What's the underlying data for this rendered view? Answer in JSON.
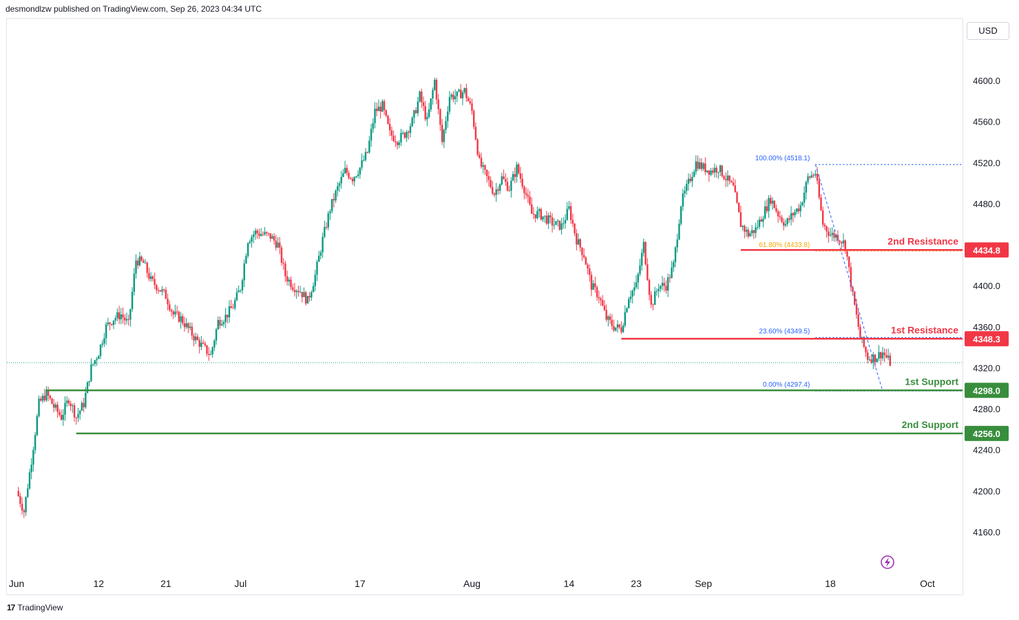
{
  "header": {
    "publisher": "desmondlzw published on TradingView.com, Sep 26, 2023 04:34 UTC"
  },
  "currency": "USD",
  "footer": {
    "brand": "TradingView",
    "logo_mark": "17"
  },
  "colors": {
    "up": "#089981",
    "down": "#f23645",
    "resistance": "#f23645",
    "support": "#388e3c",
    "fib": "#2962ff",
    "fib_mid": "#f7a600",
    "last_price_line": "#089981",
    "brand": "#131722"
  },
  "chart_data": {
    "type": "candlestick",
    "ylim": [
      4135,
      4640
    ],
    "y_ticks": [
      4160,
      4200,
      4240,
      4280,
      4320,
      4360,
      4400,
      4480,
      4520,
      4560,
      4600
    ],
    "y_tick_labels": [
      "4160.0",
      "4200.0",
      "4240.0",
      "4280.0",
      "4320.0",
      "4360.0",
      "4400.0",
      "4480.0",
      "4520.0",
      "4560.0",
      "4600.0"
    ],
    "x_labels": [
      "Jun",
      "12",
      "21",
      "Jul",
      "17",
      "Aug",
      "14",
      "23",
      "Sep",
      "18",
      "Oct"
    ],
    "x_label_dates": [
      "2023-06-01",
      "2023-06-12",
      "2023-06-21",
      "2023-07-01",
      "2023-07-17",
      "2023-08-01",
      "2023-08-14",
      "2023-08-23",
      "2023-09-01",
      "2023-09-18",
      "2023-10-01"
    ],
    "x_range": [
      "2023-06-01",
      "2023-10-01"
    ],
    "path": [
      [
        "2023-06-01",
        4200
      ],
      [
        "2023-06-02",
        4180
      ],
      [
        "2023-06-03",
        4230
      ],
      [
        "2023-06-04",
        4285
      ],
      [
        "2023-06-05",
        4295
      ],
      [
        "2023-06-06",
        4282
      ],
      [
        "2023-06-07",
        4272
      ],
      [
        "2023-06-08",
        4290
      ],
      [
        "2023-06-09",
        4272
      ],
      [
        "2023-06-10",
        4285
      ],
      [
        "2023-06-11",
        4320
      ],
      [
        "2023-06-12",
        4335
      ],
      [
        "2023-06-13",
        4360
      ],
      [
        "2023-06-14",
        4368
      ],
      [
        "2023-06-15",
        4372
      ],
      [
        "2023-06-16",
        4362
      ],
      [
        "2023-06-17",
        4425
      ],
      [
        "2023-06-18",
        4422
      ],
      [
        "2023-06-19",
        4405
      ],
      [
        "2023-06-20",
        4398
      ],
      [
        "2023-06-21",
        4390
      ],
      [
        "2023-06-22",
        4372
      ],
      [
        "2023-06-23",
        4368
      ],
      [
        "2023-06-24",
        4358
      ],
      [
        "2023-06-25",
        4348
      ],
      [
        "2023-06-26",
        4340
      ],
      [
        "2023-06-27",
        4332
      ],
      [
        "2023-06-28",
        4365
      ],
      [
        "2023-06-29",
        4370
      ],
      [
        "2023-06-30",
        4380
      ],
      [
        "2023-07-01",
        4398
      ],
      [
        "2023-07-02",
        4445
      ],
      [
        "2023-07-03",
        4452
      ],
      [
        "2023-07-04",
        4450
      ],
      [
        "2023-07-05",
        4448
      ],
      [
        "2023-07-06",
        4440
      ],
      [
        "2023-07-07",
        4410
      ],
      [
        "2023-07-08",
        4400
      ],
      [
        "2023-07-09",
        4395
      ],
      [
        "2023-07-10",
        4385
      ],
      [
        "2023-07-11",
        4410
      ],
      [
        "2023-07-12",
        4445
      ],
      [
        "2023-07-13",
        4475
      ],
      [
        "2023-07-14",
        4495
      ],
      [
        "2023-07-15",
        4512
      ],
      [
        "2023-07-16",
        4505
      ],
      [
        "2023-07-17",
        4515
      ],
      [
        "2023-07-18",
        4530
      ],
      [
        "2023-07-19",
        4570
      ],
      [
        "2023-07-20",
        4575
      ],
      [
        "2023-07-21",
        4548
      ],
      [
        "2023-07-22",
        4542
      ],
      [
        "2023-07-23",
        4548
      ],
      [
        "2023-07-24",
        4560
      ],
      [
        "2023-07-25",
        4585
      ],
      [
        "2023-07-26",
        4560
      ],
      [
        "2023-07-27",
        4600
      ],
      [
        "2023-07-28",
        4540
      ],
      [
        "2023-07-29",
        4585
      ],
      [
        "2023-07-30",
        4585
      ],
      [
        "2023-07-31",
        4590
      ],
      [
        "2023-08-01",
        4570
      ],
      [
        "2023-08-02",
        4520
      ],
      [
        "2023-08-03",
        4505
      ],
      [
        "2023-08-04",
        4490
      ],
      [
        "2023-08-05",
        4505
      ],
      [
        "2023-08-06",
        4495
      ],
      [
        "2023-08-07",
        4515
      ],
      [
        "2023-08-08",
        4495
      ],
      [
        "2023-08-09",
        4470
      ],
      [
        "2023-08-10",
        4470
      ],
      [
        "2023-08-11",
        4465
      ],
      [
        "2023-08-12",
        4460
      ],
      [
        "2023-08-13",
        4458
      ],
      [
        "2023-08-14",
        4475
      ],
      [
        "2023-08-15",
        4445
      ],
      [
        "2023-08-16",
        4430
      ],
      [
        "2023-08-17",
        4400
      ],
      [
        "2023-08-18",
        4390
      ],
      [
        "2023-08-19",
        4368
      ],
      [
        "2023-08-20",
        4360
      ],
      [
        "2023-08-21",
        4358
      ],
      [
        "2023-08-22",
        4390
      ],
      [
        "2023-08-23",
        4400
      ],
      [
        "2023-08-24",
        4440
      ],
      [
        "2023-08-25",
        4380
      ],
      [
        "2023-08-26",
        4400
      ],
      [
        "2023-08-27",
        4400
      ],
      [
        "2023-08-28",
        4420
      ],
      [
        "2023-08-29",
        4480
      ],
      [
        "2023-08-30",
        4500
      ],
      [
        "2023-08-31",
        4520
      ],
      [
        "2023-09-01",
        4515
      ],
      [
        "2023-09-02",
        4512
      ],
      [
        "2023-09-03",
        4515
      ],
      [
        "2023-09-04",
        4505
      ],
      [
        "2023-09-05",
        4495
      ],
      [
        "2023-09-06",
        4460
      ],
      [
        "2023-09-07",
        4450
      ],
      [
        "2023-09-08",
        4455
      ],
      [
        "2023-09-09",
        4470
      ],
      [
        "2023-09-10",
        4485
      ],
      [
        "2023-09-11",
        4470
      ],
      [
        "2023-09-12",
        4460
      ],
      [
        "2023-09-13",
        4470
      ],
      [
        "2023-09-14",
        4478
      ],
      [
        "2023-09-15",
        4505
      ],
      [
        "2023-09-16",
        4510
      ],
      [
        "2023-09-17",
        4460
      ],
      [
        "2023-09-18",
        4450
      ],
      [
        "2023-09-19",
        4448
      ],
      [
        "2023-09-20",
        4440
      ],
      [
        "2023-09-21",
        4390
      ],
      [
        "2023-09-22",
        4350
      ],
      [
        "2023-09-23",
        4330
      ],
      [
        "2023-09-24",
        4330
      ],
      [
        "2023-09-25",
        4335
      ],
      [
        "2023-09-26",
        4325
      ]
    ],
    "last_price": 4325,
    "levels": [
      {
        "name": "2nd Resistance",
        "value": 4434.8,
        "label": "4434.8",
        "start": "2023-09-06",
        "kind": "resistance"
      },
      {
        "name": "1st Resistance",
        "value": 4348.3,
        "label": "4348.3",
        "start": "2023-08-21",
        "kind": "resistance"
      },
      {
        "name": "1st Support",
        "value": 4298.0,
        "label": "4298.0",
        "start": "2023-06-05",
        "kind": "support"
      },
      {
        "name": "2nd Support",
        "value": 4256.0,
        "label": "4256.0",
        "start": "2023-06-09",
        "kind": "support"
      }
    ],
    "fibonacci": [
      {
        "label": "100.00% (4518.1)",
        "value": 4518.1,
        "color": "#2962ff"
      },
      {
        "label": "61.80% (4433.8)",
        "value": 4433.8,
        "color": "#f7a600"
      },
      {
        "label": "23.60% (4349.5)",
        "value": 4349.5,
        "color": "#2962ff"
      },
      {
        "label": "0.00% (4297.4)",
        "value": 4297.4,
        "color": "#2962ff"
      }
    ],
    "fib_anchor_dates": [
      "2023-09-16",
      "2023-09-25"
    ]
  }
}
